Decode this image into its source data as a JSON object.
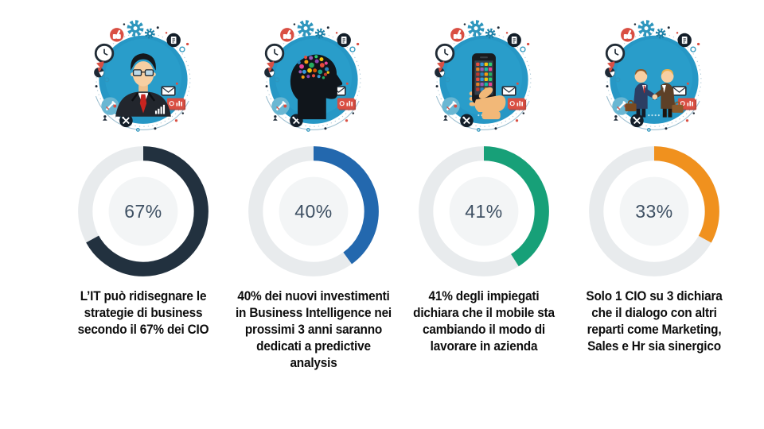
{
  "chart_data": {
    "type": "donut",
    "title": "",
    "units": "%",
    "start_angle": "top",
    "direction": "clockwise",
    "track_color": "#e8ebed",
    "center_fill": "#f3f5f6",
    "value_color": "#3e5063",
    "donuts": [
      {
        "label": "67%",
        "value": 67,
        "color": "#22313f",
        "caption": "L’IT può ridisegnare le strategie di business secondo il 67% dei CIO",
        "illustration": "businessman-cio"
      },
      {
        "label": "40%",
        "value": 40,
        "color": "#2368ae",
        "caption": "40% dei nuovi investimenti in Business Intelligence nei prossimi 3 anni saranno dedicati a predictive analysis",
        "illustration": "head-ideas-brain"
      },
      {
        "label": "41%",
        "value": 41,
        "color": "#17a078",
        "caption": "41% degli impiegati dichiara che il mobile sta cambiando il modo di lavorare in azienda",
        "illustration": "hand-smartphone"
      },
      {
        "label": "33%",
        "value": 33,
        "color": "#f0911e",
        "caption": "Solo 1 CIO su 3 dichiara che il dialogo con altri reparti come Marketing, Sales e Hr sia sinergico",
        "illustration": "business-handshake"
      }
    ],
    "illustration_theme": {
      "circle_color": "#2697c5",
      "decoration_icons": [
        "gear-icon",
        "clock-icon",
        "thumbs-up-icon",
        "pie-chart-icon",
        "megaphone-icon",
        "tools-icon",
        "document-icon",
        "envelope-icon",
        "chart-card-icon",
        "person-marker-icon"
      ]
    }
  }
}
